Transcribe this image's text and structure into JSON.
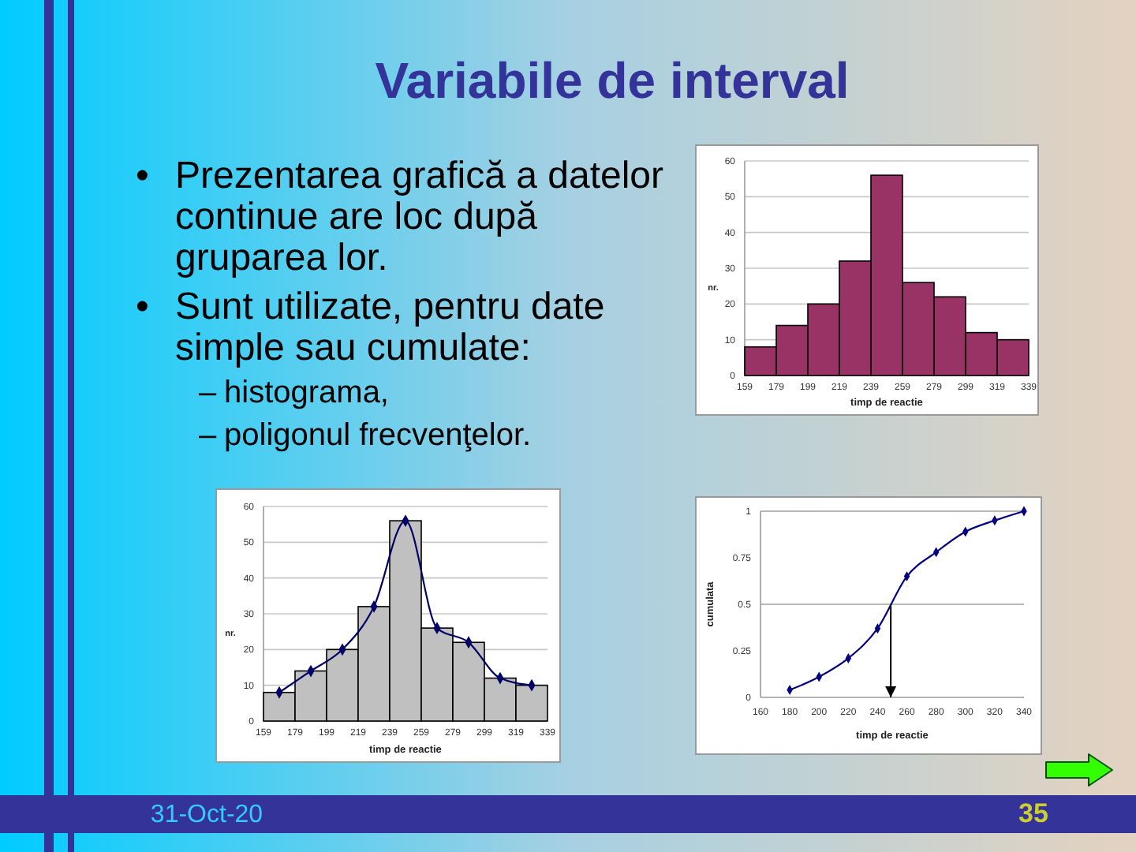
{
  "chart_data": [
    {
      "type": "other",
      "title": "Variabile de interval",
      "annotations": [
        "• Prezentarea grafică a datelor continue are loc după gruparea lor.",
        "• Sunt utilizate, pentru date simple sau cumulate:",
        "– histograma,",
        "– poligonul frecvenţelor.",
        "31-Oct-20",
        "35"
      ]
    },
    {
      "type": "histogram",
      "bins": [
        159,
        179,
        199,
        219,
        239,
        259,
        279,
        299,
        319,
        339
      ],
      "values": [
        8,
        14,
        20,
        32,
        56,
        26,
        22,
        12,
        10
      ],
      "color": "#993366",
      "xlabel": "timp de reactie",
      "ylabel": "nr.",
      "xlim": [
        159,
        339
      ],
      "xticks": [
        159,
        179,
        199,
        219,
        239,
        259,
        279,
        299,
        319,
        339
      ],
      "ylim": [
        0,
        60
      ],
      "yticks": [
        0,
        10,
        20,
        30,
        40,
        50,
        60
      ],
      "grid": "y"
    },
    {
      "type": "histogram",
      "bins": [
        159,
        179,
        199,
        219,
        239,
        259,
        279,
        299,
        319,
        339
      ],
      "series": [
        {
          "type": "histogram",
          "color": "#c0c0c0",
          "values": [
            8,
            14,
            20,
            32,
            56,
            26,
            22,
            12,
            10
          ]
        },
        {
          "type": "line",
          "x": [
            169,
            189,
            209,
            229,
            249,
            269,
            289,
            309,
            329
          ],
          "values": [
            8,
            14,
            20,
            32,
            56,
            26,
            22,
            12,
            10
          ],
          "color": "#000066"
        }
      ],
      "marker": "diamond",
      "xlabel": "timp de reactie",
      "ylabel": "nr.",
      "xlim": [
        159,
        339
      ],
      "xticks": [
        159,
        179,
        199,
        219,
        239,
        259,
        279,
        299,
        319,
        339
      ],
      "ylim": [
        0,
        60
      ],
      "yticks": [
        0,
        10,
        20,
        30,
        40,
        50,
        60
      ],
      "grid": "y"
    },
    {
      "type": "line",
      "x": [
        180,
        200,
        220,
        240,
        260,
        280,
        300,
        320,
        340
      ],
      "values": [
        0.04,
        0.11,
        0.21,
        0.37,
        0.65,
        0.78,
        0.89,
        0.95,
        1
      ],
      "color": "#000080",
      "marker": "diamond",
      "xlabel": "timp de reactie",
      "ylabel": "cumulata",
      "xlim": [
        160,
        340
      ],
      "xticks": [
        160,
        180,
        200,
        220,
        240,
        260,
        280,
        300,
        320,
        340
      ],
      "ylim": [
        0,
        1
      ],
      "yticks": [
        0,
        0.25,
        0.5,
        0.75,
        1
      ],
      "ref_lines": [
        {
          "axis": "y",
          "value": 0.5,
          "color": "#a0a0a0"
        },
        {
          "axis": "x",
          "value": 249,
          "color": "#000000"
        }
      ]
    }
  ]
}
